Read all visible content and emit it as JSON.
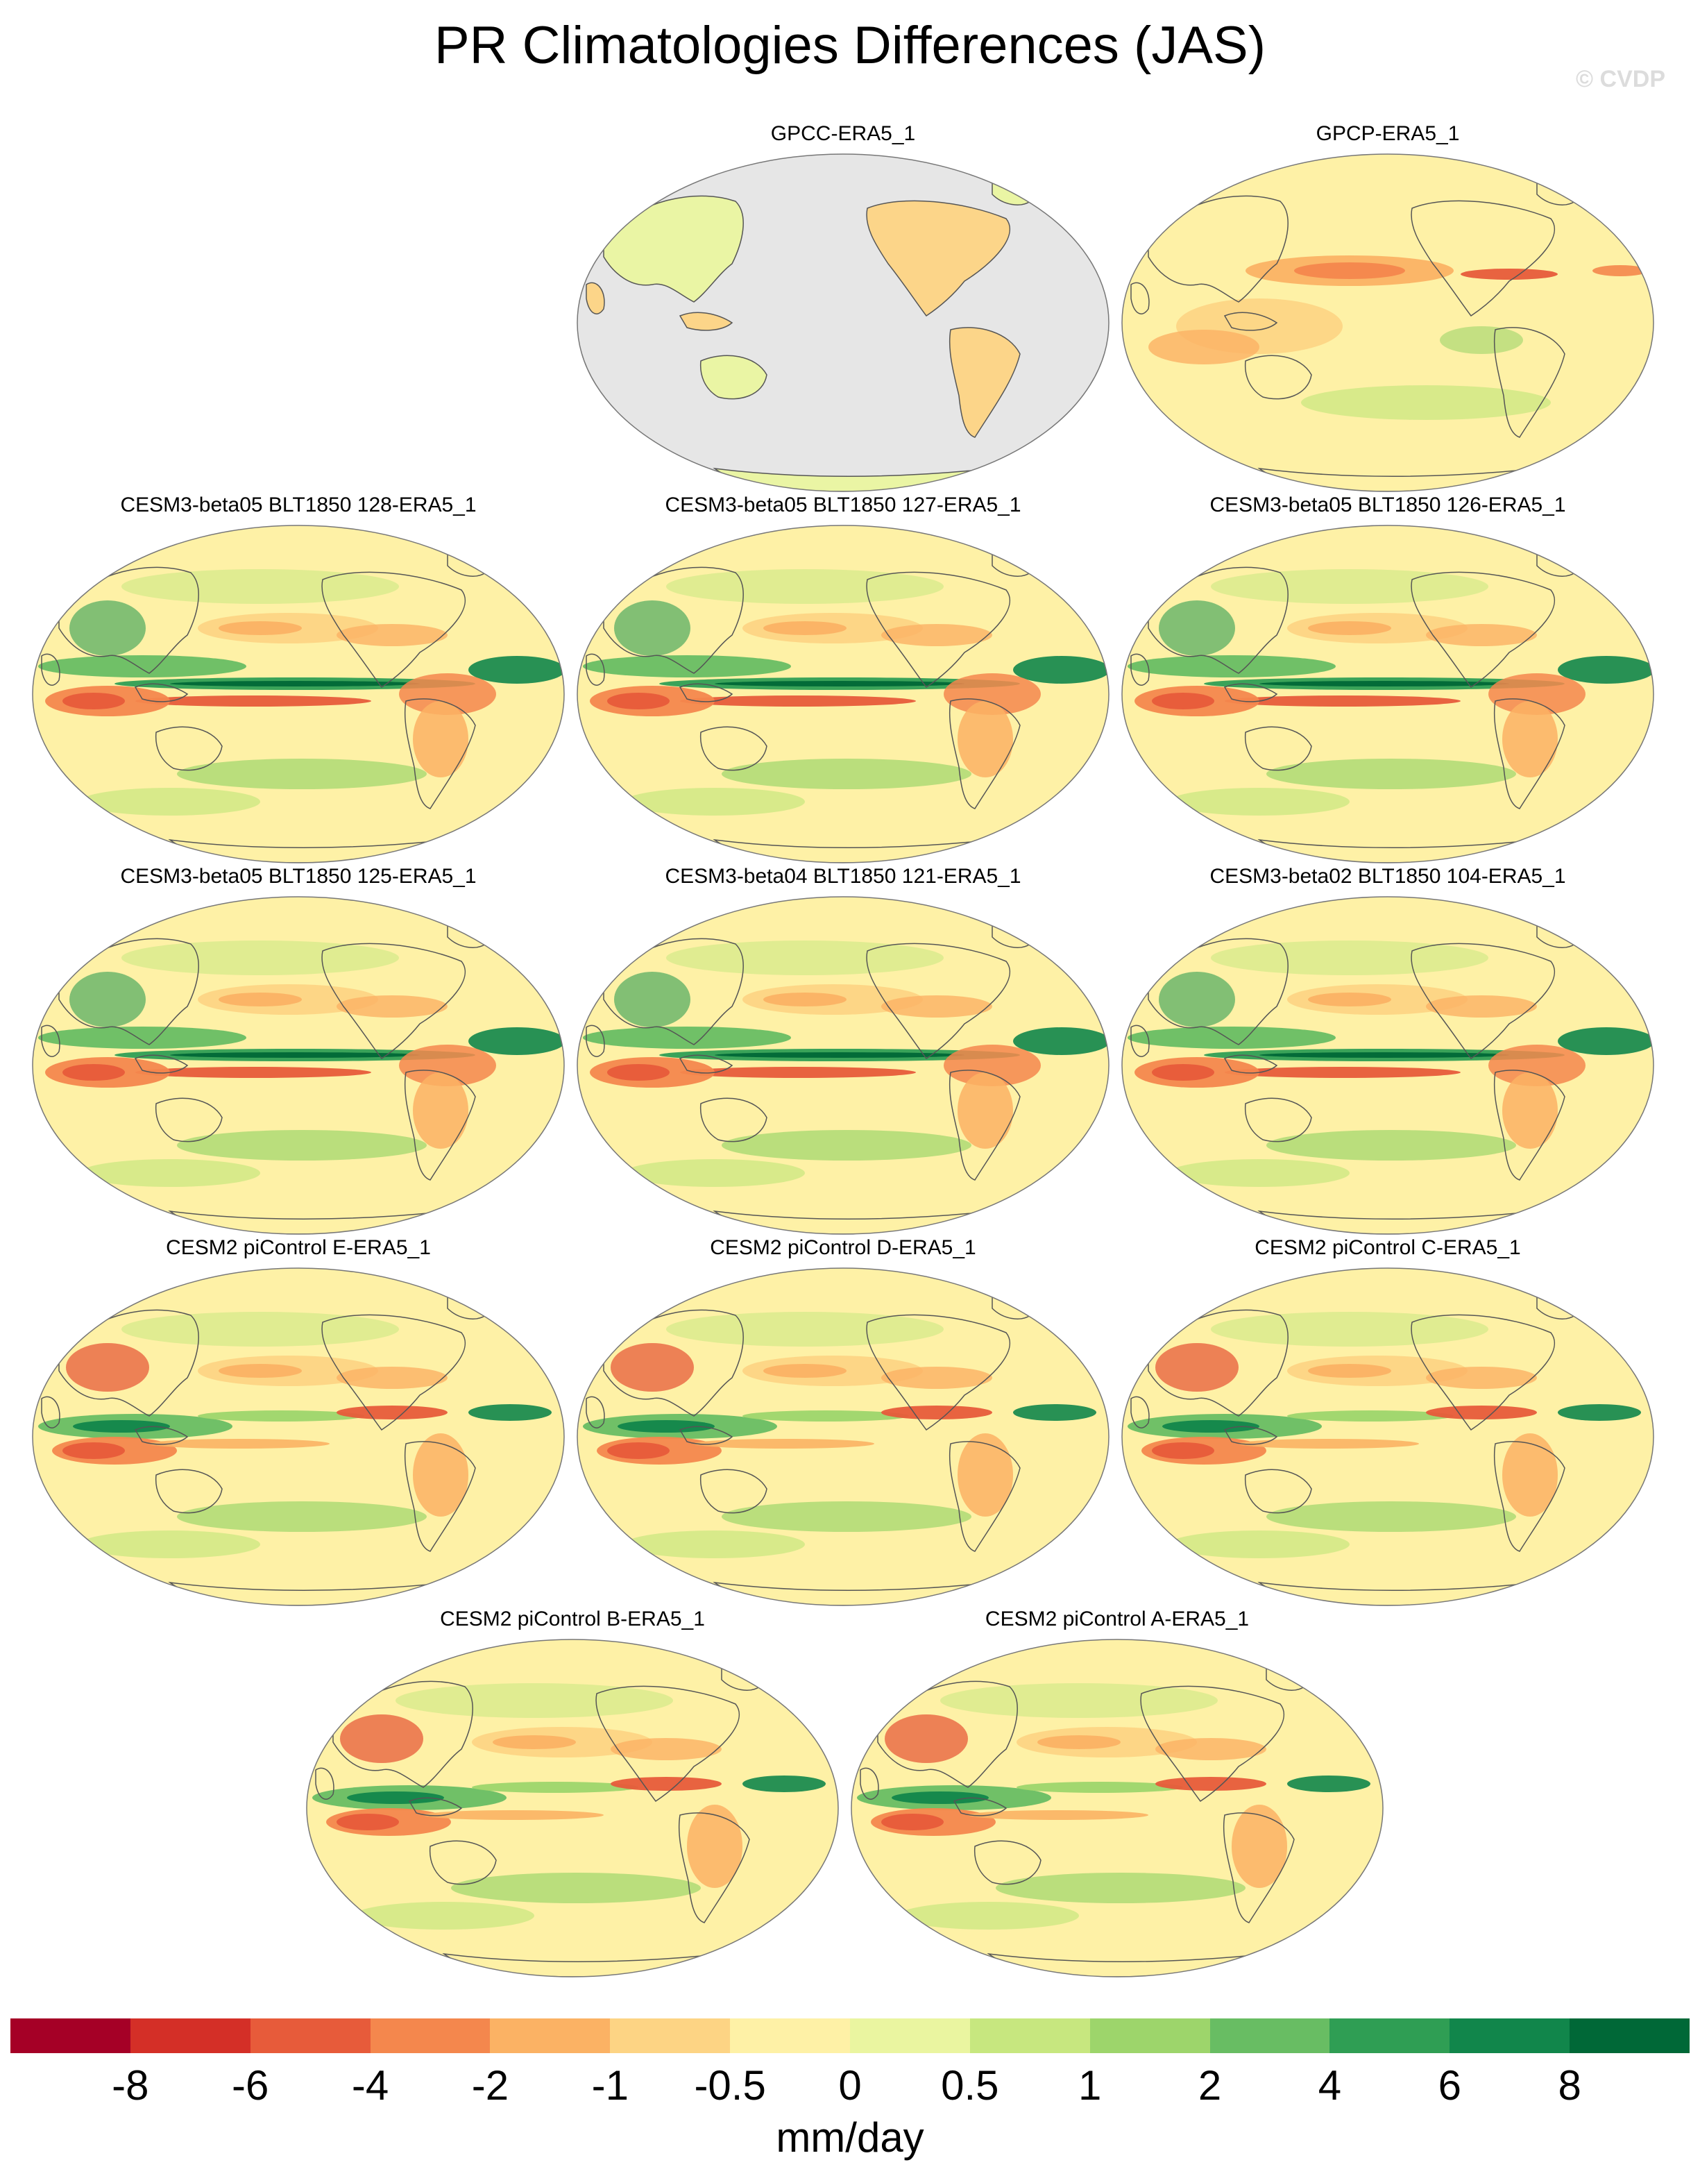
{
  "title": "PR Climatologies Differences (JAS)",
  "watermark": "© CVDP",
  "units": "mm/day",
  "colorbar": {
    "ticks": [
      "-8",
      "-6",
      "-4",
      "-2",
      "-1",
      "-0.5",
      "0",
      "0.5",
      "1",
      "2",
      "4",
      "6",
      "8"
    ],
    "colors": [
      "#a50026",
      "#d42f27",
      "#e75b3a",
      "#f4874d",
      "#fbb264",
      "#fdd484",
      "#fef1a6",
      "#eaf5a0",
      "#c7e77f",
      "#9dd56b",
      "#68bd63",
      "#2f9e54",
      "#11864b",
      "#006837"
    ]
  },
  "panels": [
    {
      "label": "GPCC-ERA5_1",
      "ocean": "land-only"
    },
    {
      "label": "GPCP-ERA5_1",
      "ocean": "obs"
    },
    {
      "label": "CESM3-beta05 BLT1850 128-ERA5_1",
      "ocean": "model"
    },
    {
      "label": "CESM3-beta05 BLT1850 127-ERA5_1",
      "ocean": "model"
    },
    {
      "label": "CESM3-beta05 BLT1850 126-ERA5_1",
      "ocean": "model"
    },
    {
      "label": "CESM3-beta05 BLT1850 125-ERA5_1",
      "ocean": "model"
    },
    {
      "label": "CESM3-beta04 BLT1850 121-ERA5_1",
      "ocean": "model"
    },
    {
      "label": "CESM3-beta02 BLT1850 104-ERA5_1",
      "ocean": "model"
    },
    {
      "label": "CESM2 piControl E-ERA5_1",
      "ocean": "cesm2"
    },
    {
      "label": "CESM2 piControl D-ERA5_1",
      "ocean": "cesm2"
    },
    {
      "label": "CESM2 piControl C-ERA5_1",
      "ocean": "cesm2"
    },
    {
      "label": "CESM2 piControl B-ERA5_1",
      "ocean": "cesm2"
    },
    {
      "label": "CESM2 piControl A-ERA5_1",
      "ocean": "cesm2"
    }
  ]
}
